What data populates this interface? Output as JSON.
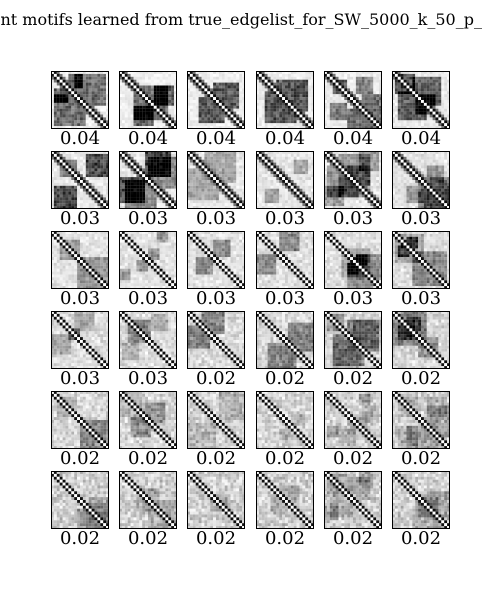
{
  "chart_data": {
    "type": "heatmap",
    "title": "ent motifs learned from true_edgelist_for_SW_5000_k_50_p_",
    "grid": {
      "rows": 6,
      "cols": 6
    },
    "colormap": "gray_r",
    "values": [
      0.04,
      0.04,
      0.04,
      0.04,
      0.04,
      0.04,
      0.03,
      0.03,
      0.03,
      0.03,
      0.03,
      0.03,
      0.03,
      0.03,
      0.03,
      0.03,
      0.03,
      0.03,
      0.03,
      0.03,
      0.02,
      0.02,
      0.02,
      0.02,
      0.02,
      0.02,
      0.02,
      0.02,
      0.02,
      0.02,
      0.02,
      0.02,
      0.02,
      0.02,
      0.02,
      0.02
    ],
    "labels": [
      "0.04",
      "0.04",
      "0.04",
      "0.04",
      "0.04",
      "0.04",
      "0.03",
      "0.03",
      "0.03",
      "0.03",
      "0.03",
      "0.03",
      "0.03",
      "0.03",
      "0.03",
      "0.03",
      "0.03",
      "0.03",
      "0.03",
      "0.03",
      "0.02",
      "0.02",
      "0.02",
      "0.02",
      "0.02",
      "0.02",
      "0.02",
      "0.02",
      "0.02",
      "0.02",
      "0.02",
      "0.02",
      "0.02",
      "0.02",
      "0.02",
      "0.02"
    ]
  }
}
